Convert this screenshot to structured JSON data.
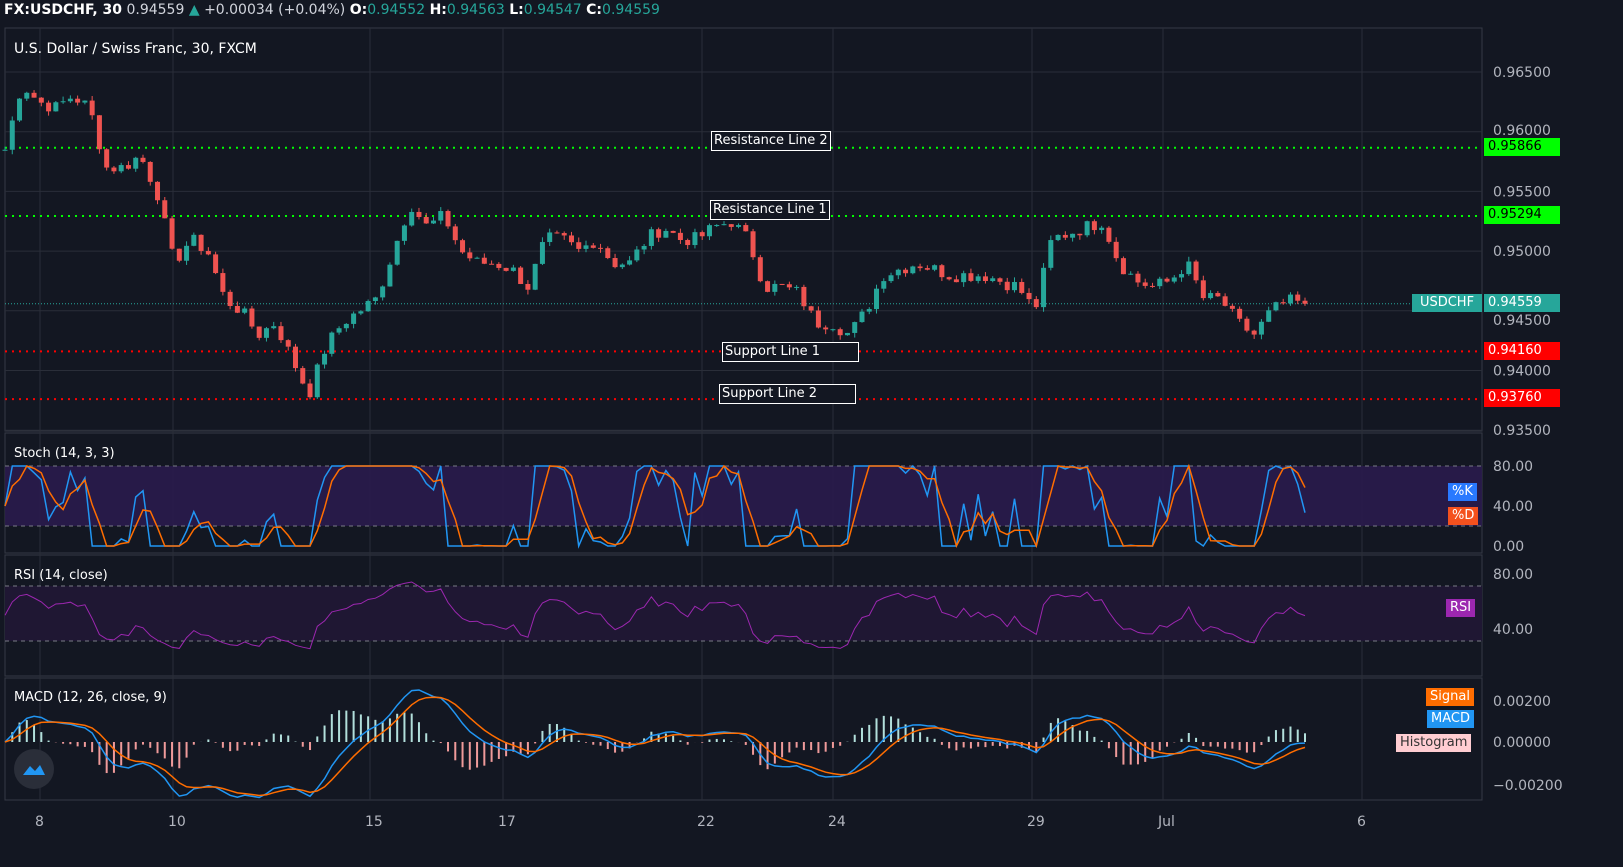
{
  "header": {
    "symbol": "FX:USDCHF, 30",
    "last": "0.94559",
    "change": "+0.00034 (+0.04%)",
    "o_label": "O:",
    "open": "0.94552",
    "h_label": "H:",
    "high": "0.94563",
    "l_label": "L:",
    "low": "0.94547",
    "c_label": "C:",
    "close": "0.94559"
  },
  "pane_titles": {
    "main": "U.S. Dollar / Swiss Franc, 30, FXCM",
    "stoch": "Stoch (14, 3, 3)",
    "rsi": "RSI (14, close)",
    "macd": "MACD (12, 26, close, 9)"
  },
  "lines": [
    {
      "label": "Resistance Line 2",
      "value": "0.95866",
      "price": 0.95866,
      "color": "#00ff00"
    },
    {
      "label": "Resistance Line 1",
      "value": "0.95294",
      "price": 0.95294,
      "color": "#00ff00"
    },
    {
      "label": "Support Line 1",
      "value": "0.94160",
      "price": 0.9416,
      "color": "#ff0000"
    },
    {
      "label": "Support Line 2",
      "value": "0.93760",
      "price": 0.9376,
      "color": "#ff0000"
    }
  ],
  "last_tag": {
    "symbol": "USDCHF",
    "value": "0.94559",
    "color": "#26a69a"
  },
  "legend_tags": {
    "k": "%K",
    "d": "%D",
    "rsi": "RSI",
    "signal": "Signal",
    "macd": "MACD",
    "histogram": "Histogram"
  },
  "colors": {
    "up": "#26a69a",
    "down": "#ef5350",
    "k": "#2196f3",
    "d": "#ff6d00",
    "rsi": "#9c27b0",
    "macd": "#2196f3",
    "signal": "#ff6d00"
  },
  "chart_data": {
    "type": "candlestick",
    "price_axis": {
      "ticks": [
        "0.96500",
        "0.96000",
        "0.95500",
        "0.95000",
        "0.94500",
        "0.94000",
        "0.93500"
      ],
      "range": [
        0.935,
        0.965
      ]
    },
    "time_axis": {
      "ticks": [
        "8",
        "10",
        "15",
        "17",
        "22",
        "24",
        "29",
        "Jul",
        "6"
      ]
    },
    "closes": [
      0.9585,
      0.964,
      0.9625,
      0.962,
      0.963,
      0.962,
      0.957,
      0.957,
      0.958,
      0.955,
      0.949,
      0.951,
      0.95,
      0.946,
      0.945,
      0.943,
      0.944,
      0.941,
      0.938,
      0.942,
      0.944,
      0.945,
      0.946,
      0.95,
      0.954,
      0.952,
      0.953,
      0.95,
      0.949,
      0.949,
      0.9485,
      0.947,
      0.951,
      0.951,
      0.95,
      0.951,
      0.949,
      0.949,
      0.951,
      0.952,
      0.951,
      0.951,
      0.952,
      0.9525,
      0.951,
      0.947,
      0.947,
      0.9465,
      0.944,
      0.944,
      0.943,
      0.945,
      0.948,
      0.9485,
      0.949,
      0.9485,
      0.948,
      0.948,
      0.948,
      0.9475,
      0.947,
      0.945,
      0.951,
      0.9515,
      0.952,
      0.9525,
      0.949,
      0.9475,
      0.947,
      0.9475,
      0.949,
      0.946,
      0.946,
      0.944,
      0.943,
      0.945,
      0.9458,
      0.94559
    ],
    "stoch_axis": {
      "ticks": [
        "80.00",
        "40.00",
        "0.00"
      ],
      "bands": [
        80,
        20
      ]
    },
    "rsi_axis": {
      "ticks": [
        "80.00",
        "40.00"
      ],
      "bands": [
        70,
        30
      ]
    },
    "macd_axis": {
      "ticks": [
        "0.00200",
        "0.00000",
        "−0.00200"
      ]
    }
  }
}
